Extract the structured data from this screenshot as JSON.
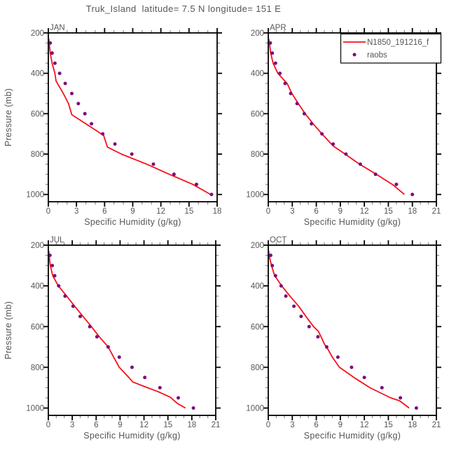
{
  "title": "Truk_Island  latitude= 7.5 N longitude= 151 E",
  "colors": {
    "model_line": "#f8101a",
    "raobs_dot": "#7c0e7c",
    "frame": "#000000",
    "text": "#565656",
    "minor_tick": "#909090",
    "background": "#ffffff"
  },
  "legend": {
    "position": "top-right-of-APR-panel",
    "entries": [
      {
        "label": "N1850_191216_f",
        "marker": "line",
        "color": "#f8101a"
      },
      {
        "label": "raobs",
        "marker": "dot",
        "color": "#7c0e7c"
      }
    ]
  },
  "chart_data": [
    {
      "type": "line",
      "panel_label": "JAN",
      "xlabel": "Specific Humidity (g/kg)",
      "ylabel": "Pressure (mb)",
      "xlim": [
        0,
        18
      ],
      "xticks": [
        0,
        3,
        6,
        9,
        12,
        15,
        18
      ],
      "xtick_minor_step": 1,
      "ylim": [
        200,
        1036
      ],
      "yticks": [
        200,
        400,
        600,
        800,
        1000
      ],
      "ytick_minor_step": 50,
      "y_axis_inverted_pressure": true,
      "series": [
        {
          "name": "N1850_191216_f",
          "type": "line",
          "pressure": [
            228,
            250,
            300,
            350,
            400,
            438,
            500,
            550,
            605,
            650,
            708,
            765,
            800,
            850,
            900,
            950,
            1000
          ],
          "values": [
            0.05,
            0.1,
            0.2,
            0.4,
            0.7,
            0.82,
            1.6,
            2.15,
            2.5,
            4.0,
            5.9,
            6.3,
            7.8,
            10.5,
            12.9,
            15.4,
            17.3
          ]
        },
        {
          "name": "raobs",
          "type": "scatter",
          "pressure": [
            250,
            300,
            350,
            400,
            450,
            500,
            550,
            600,
            650,
            700,
            750,
            800,
            850,
            900,
            950,
            1000
          ],
          "values": [
            0.2,
            0.4,
            0.7,
            1.2,
            1.8,
            2.5,
            3.2,
            3.9,
            4.6,
            5.8,
            7.1,
            8.9,
            11.2,
            13.4,
            15.8,
            17.4
          ]
        }
      ]
    },
    {
      "type": "line",
      "panel_label": "APR",
      "xlabel": "Specific Humidity (g/kg)",
      "ylabel": "Pressure (mb)",
      "xlim": [
        0,
        21
      ],
      "xticks": [
        0,
        3,
        6,
        9,
        12,
        15,
        18,
        21
      ],
      "xtick_minor_step": 1,
      "ylim": [
        200,
        1036
      ],
      "yticks": [
        200,
        400,
        600,
        800,
        1000
      ],
      "ytick_minor_step": 50,
      "y_axis_inverted_pressure": true,
      "series": [
        {
          "name": "N1850_191216_f",
          "type": "line",
          "pressure": [
            228,
            250,
            300,
            350,
            400,
            420,
            450,
            500,
            550,
            600,
            650,
            700,
            760,
            800,
            850,
            900,
            953,
            1000
          ],
          "values": [
            0.05,
            0.15,
            0.3,
            0.6,
            1.2,
            1.65,
            2.35,
            2.95,
            3.75,
            4.6,
            5.6,
            6.7,
            8.1,
            9.6,
            11.4,
            13.5,
            15.6,
            17.0
          ]
        },
        {
          "name": "raobs",
          "type": "scatter",
          "pressure": [
            250,
            300,
            350,
            400,
            450,
            500,
            550,
            600,
            650,
            700,
            750,
            800,
            850,
            900,
            950,
            1000
          ],
          "values": [
            0.25,
            0.5,
            0.9,
            1.45,
            2.1,
            2.8,
            3.6,
            4.5,
            5.4,
            6.7,
            8.1,
            9.7,
            11.5,
            13.4,
            16.0,
            18.0
          ]
        }
      ]
    },
    {
      "type": "line",
      "panel_label": "JUL",
      "xlabel": "Specific Humidity (g/kg)",
      "ylabel": "Pressure (mb)",
      "xlim": [
        0,
        21
      ],
      "xticks": [
        0,
        3,
        6,
        9,
        12,
        15,
        18,
        21
      ],
      "xtick_minor_step": 1,
      "ylim": [
        200,
        1036
      ],
      "yticks": [
        200,
        400,
        600,
        800,
        1000
      ],
      "ytick_minor_step": 50,
      "y_axis_inverted_pressure": true,
      "series": [
        {
          "name": "N1850_191216_f",
          "type": "line",
          "pressure": [
            228,
            250,
            300,
            350,
            400,
            450,
            500,
            550,
            600,
            650,
            700,
            750,
            800,
            850,
            872,
            895,
            920,
            947,
            978,
            1000
          ],
          "values": [
            0.05,
            0.1,
            0.25,
            0.55,
            1.25,
            2.3,
            3.3,
            4.35,
            5.4,
            6.4,
            7.5,
            8.2,
            8.9,
            10.1,
            10.6,
            12.1,
            13.8,
            15.3,
            16.2,
            17.2
          ]
        },
        {
          "name": "raobs",
          "type": "scatter",
          "pressure": [
            250,
            300,
            350,
            400,
            450,
            500,
            550,
            600,
            650,
            700,
            750,
            800,
            850,
            900,
            950,
            1000
          ],
          "values": [
            0.2,
            0.5,
            0.8,
            1.3,
            2.1,
            3.1,
            4.0,
            5.2,
            6.1,
            7.5,
            8.9,
            10.5,
            12.1,
            14.0,
            16.3,
            18.2
          ]
        }
      ]
    },
    {
      "type": "line",
      "panel_label": "OCT",
      "xlabel": "Specific Humidity (g/kg)",
      "ylabel": "Pressure (mb)",
      "xlim": [
        0,
        21
      ],
      "xticks": [
        0,
        3,
        6,
        9,
        12,
        15,
        18,
        21
      ],
      "xtick_minor_step": 1,
      "ylim": [
        200,
        1036
      ],
      "yticks": [
        200,
        400,
        600,
        800,
        1000
      ],
      "ytick_minor_step": 50,
      "y_axis_inverted_pressure": true,
      "series": [
        {
          "name": "N1850_191216_f",
          "type": "line",
          "pressure": [
            228,
            250,
            300,
            350,
            405,
            450,
            500,
            550,
            600,
            622,
            650,
            685,
            713,
            750,
            800,
            850,
            900,
            950,
            964,
            1000
          ],
          "values": [
            0.05,
            0.1,
            0.4,
            0.8,
            1.78,
            2.7,
            3.8,
            4.7,
            5.65,
            6.24,
            6.6,
            7.0,
            7.47,
            8.0,
            8.9,
            10.7,
            12.7,
            15.3,
            16.4,
            17.6
          ]
        },
        {
          "name": "raobs",
          "type": "scatter",
          "pressure": [
            250,
            300,
            350,
            400,
            450,
            500,
            550,
            600,
            650,
            700,
            750,
            800,
            850,
            900,
            950,
            1000
          ],
          "values": [
            0.3,
            0.5,
            0.9,
            1.6,
            2.2,
            3.2,
            4.1,
            5.1,
            6.2,
            7.3,
            8.7,
            10.4,
            12.0,
            14.2,
            16.5,
            18.5
          ]
        }
      ]
    }
  ]
}
